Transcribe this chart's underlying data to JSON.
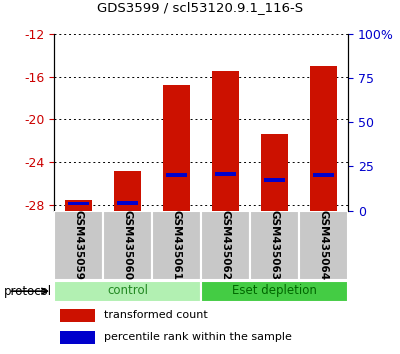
{
  "title": "GDS3599 / scl53120.9.1_116-S",
  "samples": [
    "GSM435059",
    "GSM435060",
    "GSM435061",
    "GSM435062",
    "GSM435063",
    "GSM435064"
  ],
  "groups": [
    "control",
    "control",
    "control",
    "Eset depletion",
    "Eset depletion",
    "Eset depletion"
  ],
  "red_tops": [
    -27.5,
    -24.8,
    -16.8,
    -15.5,
    -21.4,
    -15.0
  ],
  "blue_pct": [
    4.0,
    4.5,
    20.0,
    20.5,
    17.5,
    20.0
  ],
  "ylim": [
    -28.5,
    -12.0
  ],
  "yticks_left": [
    -28,
    -24,
    -20,
    -16,
    -12
  ],
  "yticks_right_pct": [
    0,
    25,
    50,
    75,
    100
  ],
  "left_tick_color": "#cc0000",
  "right_tick_color": "#0000cc",
  "bar_red": "#cc1100",
  "bar_blue": "#0000cc",
  "group_colors": {
    "control": "#b2f0b2",
    "Eset depletion": "#44cc44"
  },
  "group_text_color": {
    "control": "#228822",
    "Eset depletion": "#006600"
  },
  "xlabel_bg": "#c8c8c8",
  "legend_items": [
    "transformed count",
    "percentile rank within the sample"
  ],
  "protocol_label": "protocol"
}
